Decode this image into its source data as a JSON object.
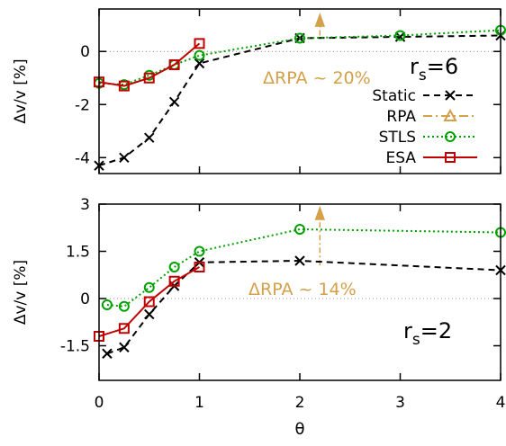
{
  "chart_data": [
    {
      "type": "line",
      "ylabel": "Δv/v [%]",
      "xlim": [
        0,
        4
      ],
      "ylim": [
        -4.6,
        1.6
      ],
      "yticks": [
        "-4",
        "-2",
        "0"
      ],
      "xticks": [
        "",
        "",
        "",
        "",
        ""
      ],
      "grid": false,
      "zero_line": true,
      "legend_placement": "right",
      "annotation": {
        "text": "ΔRPA ~ 20%",
        "arrow_x": 2.2,
        "arrow_from": 0.6,
        "arrow_to": 1.35
      },
      "panel_label": {
        "main": "r",
        "sub": "s",
        "rest": "=6"
      },
      "series": [
        {
          "name": "Static",
          "color": "#000000",
          "marker": "x",
          "dash": "dashed",
          "x": [
            0,
            0.25,
            0.5,
            0.75,
            1,
            2,
            3,
            4
          ],
          "y": [
            -4.3,
            -4.0,
            -3.25,
            -1.9,
            -0.45,
            0.5,
            0.55,
            0.6
          ]
        },
        {
          "name": "RPA",
          "color": "#d4a04a",
          "marker": "triangle",
          "dash": "dashdot",
          "x": [],
          "y": []
        },
        {
          "name": "STLS",
          "color": "#00a000",
          "marker": "circle",
          "dash": "dotted",
          "x": [
            0,
            0.25,
            0.5,
            0.75,
            1,
            2,
            3,
            4
          ],
          "y": [
            -1.2,
            -1.25,
            -0.9,
            -0.5,
            -0.15,
            0.5,
            0.6,
            0.8
          ]
        },
        {
          "name": "ESA",
          "color": "#c00000",
          "marker": "square",
          "dash": "solid",
          "x": [
            0,
            0.25,
            0.5,
            0.75,
            1
          ],
          "y": [
            -1.15,
            -1.3,
            -1.0,
            -0.5,
            0.3
          ]
        }
      ]
    },
    {
      "type": "line",
      "xlabel": "θ",
      "ylabel": "Δv/v [%]",
      "xlim": [
        0,
        4
      ],
      "ylim": [
        -2.6,
        3.0
      ],
      "yticks": [
        "3",
        "1.5",
        "0",
        "-1.5"
      ],
      "xticks": [
        "0",
        "1",
        "2",
        "3",
        "4"
      ],
      "grid": false,
      "zero_line": true,
      "annotation": {
        "text": "ΔRPA ~ 14%",
        "arrow_x": 2.2,
        "arrow_from": 1.05,
        "arrow_to": 2.85
      },
      "panel_label": {
        "main": "r",
        "sub": "s",
        "rest": "=2"
      },
      "series": [
        {
          "name": "Static",
          "color": "#000000",
          "marker": "x",
          "dash": "dashed",
          "x": [
            0.08,
            0.25,
            0.5,
            0.75,
            1,
            2,
            4
          ],
          "y": [
            -1.75,
            -1.55,
            -0.5,
            0.4,
            1.15,
            1.2,
            0.9
          ]
        },
        {
          "name": "STLS",
          "color": "#00a000",
          "marker": "circle",
          "dash": "dotted",
          "x": [
            0.08,
            0.25,
            0.5,
            0.75,
            1,
            2,
            4
          ],
          "y": [
            -0.2,
            -0.25,
            0.35,
            1.0,
            1.5,
            2.2,
            2.1
          ]
        },
        {
          "name": "ESA",
          "color": "#c00000",
          "marker": "square",
          "dash": "solid",
          "x": [
            0,
            0.25,
            0.5,
            0.75,
            1
          ],
          "y": [
            -1.2,
            -0.95,
            -0.1,
            0.55,
            1.0
          ]
        }
      ]
    }
  ]
}
